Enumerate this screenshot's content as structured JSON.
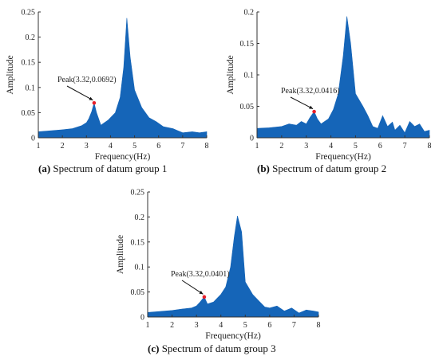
{
  "colors": {
    "fill": "#1565b8",
    "axis": "#333333",
    "peak_marker": "#e8202a"
  },
  "chart_data": [
    {
      "type": "area",
      "xlabel": "Frequency(Hz)",
      "ylabel": "Amplitude",
      "xlim": [
        1,
        8
      ],
      "ylim": [
        0,
        0.25
      ],
      "xticks": [
        "1",
        "2",
        "3",
        "4",
        "5",
        "6",
        "7",
        "8"
      ],
      "yticks": [
        "0",
        "0.05",
        "0.1",
        "0.15",
        "0.2",
        "0.25"
      ],
      "x": [
        1.0,
        1.5,
        2.0,
        2.4,
        2.8,
        3.0,
        3.1,
        3.22,
        3.32,
        3.42,
        3.6,
        3.9,
        4.2,
        4.4,
        4.55,
        4.68,
        4.82,
        5.0,
        5.3,
        5.6,
        5.9,
        6.2,
        6.6,
        6.8,
        7.0,
        7.4,
        7.7,
        8.0
      ],
      "y": [
        0.012,
        0.014,
        0.016,
        0.018,
        0.024,
        0.03,
        0.038,
        0.052,
        0.0692,
        0.05,
        0.025,
        0.035,
        0.05,
        0.08,
        0.14,
        0.238,
        0.16,
        0.095,
        0.06,
        0.04,
        0.032,
        0.022,
        0.018,
        0.014,
        0.01,
        0.012,
        0.01,
        0.012
      ],
      "peak": {
        "x": 3.32,
        "y": 0.0692,
        "label": "Peak(3.32,0.0692)"
      },
      "caption_letter": "(a)",
      "caption_text": " Spectrum of datum group 1"
    },
    {
      "type": "area",
      "xlabel": "Frequency(Hz)",
      "ylabel": "Amplitude",
      "xlim": [
        1,
        8
      ],
      "ylim": [
        0,
        0.2
      ],
      "xticks": [
        "1",
        "2",
        "3",
        "4",
        "5",
        "6",
        "7",
        "8"
      ],
      "yticks": [
        "0",
        "0.05",
        "0.1",
        "0.15",
        "0.2"
      ],
      "x": [
        1.0,
        1.5,
        2.0,
        2.3,
        2.6,
        2.8,
        3.0,
        3.15,
        3.32,
        3.45,
        3.6,
        3.9,
        4.1,
        4.3,
        4.5,
        4.65,
        4.8,
        5.0,
        5.3,
        5.5,
        5.7,
        5.9,
        6.1,
        6.3,
        6.5,
        6.6,
        6.8,
        7.0,
        7.2,
        7.4,
        7.6,
        7.8,
        8.0
      ],
      "y": [
        0.015,
        0.016,
        0.018,
        0.022,
        0.02,
        0.026,
        0.022,
        0.032,
        0.0416,
        0.03,
        0.022,
        0.03,
        0.045,
        0.07,
        0.13,
        0.193,
        0.15,
        0.07,
        0.05,
        0.035,
        0.018,
        0.015,
        0.035,
        0.018,
        0.025,
        0.012,
        0.02,
        0.008,
        0.026,
        0.018,
        0.022,
        0.01,
        0.012
      ],
      "peak": {
        "x": 3.32,
        "y": 0.0416,
        "label": "Peak(3.32,0.0416)"
      },
      "caption_letter": "(b)",
      "caption_text": " Spectrum of datum group 2"
    },
    {
      "type": "area",
      "xlabel": "Frequency(Hz)",
      "ylabel": "Amplitude",
      "xlim": [
        1,
        8
      ],
      "ylim": [
        0,
        0.25
      ],
      "xticks": [
        "1",
        "2",
        "3",
        "4",
        "5",
        "6",
        "7",
        "8"
      ],
      "yticks": [
        "0",
        "0.05",
        "0.1",
        "0.15",
        "0.2",
        "0.25"
      ],
      "x": [
        1.0,
        1.5,
        2.0,
        2.4,
        2.8,
        3.0,
        3.15,
        3.32,
        3.45,
        3.7,
        4.0,
        4.2,
        4.4,
        4.55,
        4.68,
        4.85,
        5.0,
        5.3,
        5.6,
        5.8,
        6.0,
        6.3,
        6.6,
        6.9,
        7.2,
        7.5,
        7.8,
        8.0
      ],
      "y": [
        0.009,
        0.011,
        0.013,
        0.016,
        0.018,
        0.022,
        0.03,
        0.0401,
        0.026,
        0.03,
        0.045,
        0.06,
        0.1,
        0.16,
        0.202,
        0.17,
        0.07,
        0.045,
        0.03,
        0.02,
        0.018,
        0.022,
        0.012,
        0.018,
        0.008,
        0.014,
        0.012,
        0.01
      ],
      "peak": {
        "x": 3.32,
        "y": 0.0401,
        "label": "Peak(3.32,0.0401)"
      },
      "caption_letter": "(c)",
      "caption_text": " Spectrum of datum group 3"
    }
  ]
}
